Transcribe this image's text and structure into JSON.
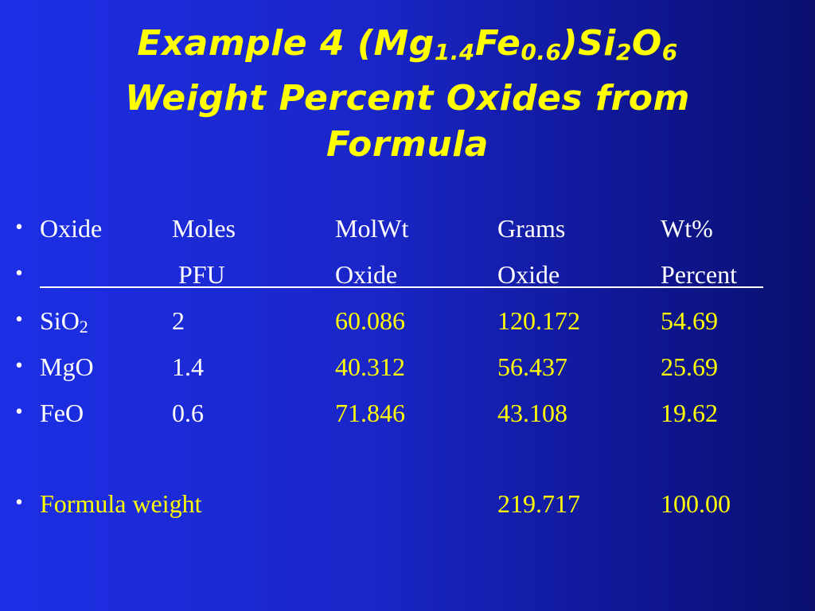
{
  "title": {
    "line1_prefix": "Example 4 (Mg",
    "mg_sub": "1.4",
    "fe": "Fe",
    "fe_sub": "0.6",
    "si": ")Si",
    "si_sub": "2",
    "o": "O",
    "o_sub": "6",
    "line2": "Weight Percent Oxides from",
    "line3": "Formula"
  },
  "bullet": "•",
  "header_row1": [
    "Oxide",
    "Moles",
    "MolWt",
    "Grams",
    "Wt%"
  ],
  "header_row2": [
    "",
    "PFU",
    "Oxide",
    "Oxide",
    "Percent"
  ],
  "rows": [
    {
      "oxide": "SiO",
      "oxide_sub": "2",
      "moles": "2",
      "molwt": "60.086",
      "grams": "120.172",
      "wt": "54.69"
    },
    {
      "oxide": "MgO",
      "oxide_sub": "",
      "moles": "1.4",
      "molwt": "40.312",
      "grams": "56.437",
      "wt": "25.69"
    },
    {
      "oxide": "FeO",
      "oxide_sub": "",
      "moles": "0.6",
      "molwt": "71.846",
      "grams": "43.108",
      "wt": "19.62"
    }
  ],
  "total": {
    "label": "Formula weight",
    "grams": "219.717",
    "wt": "100.00"
  },
  "colors": {
    "title": "#ffff00",
    "text": "#ffffff",
    "highlight": "#ffff00",
    "background_left": "#1d2fe6",
    "background_right": "#0a0f6e"
  }
}
